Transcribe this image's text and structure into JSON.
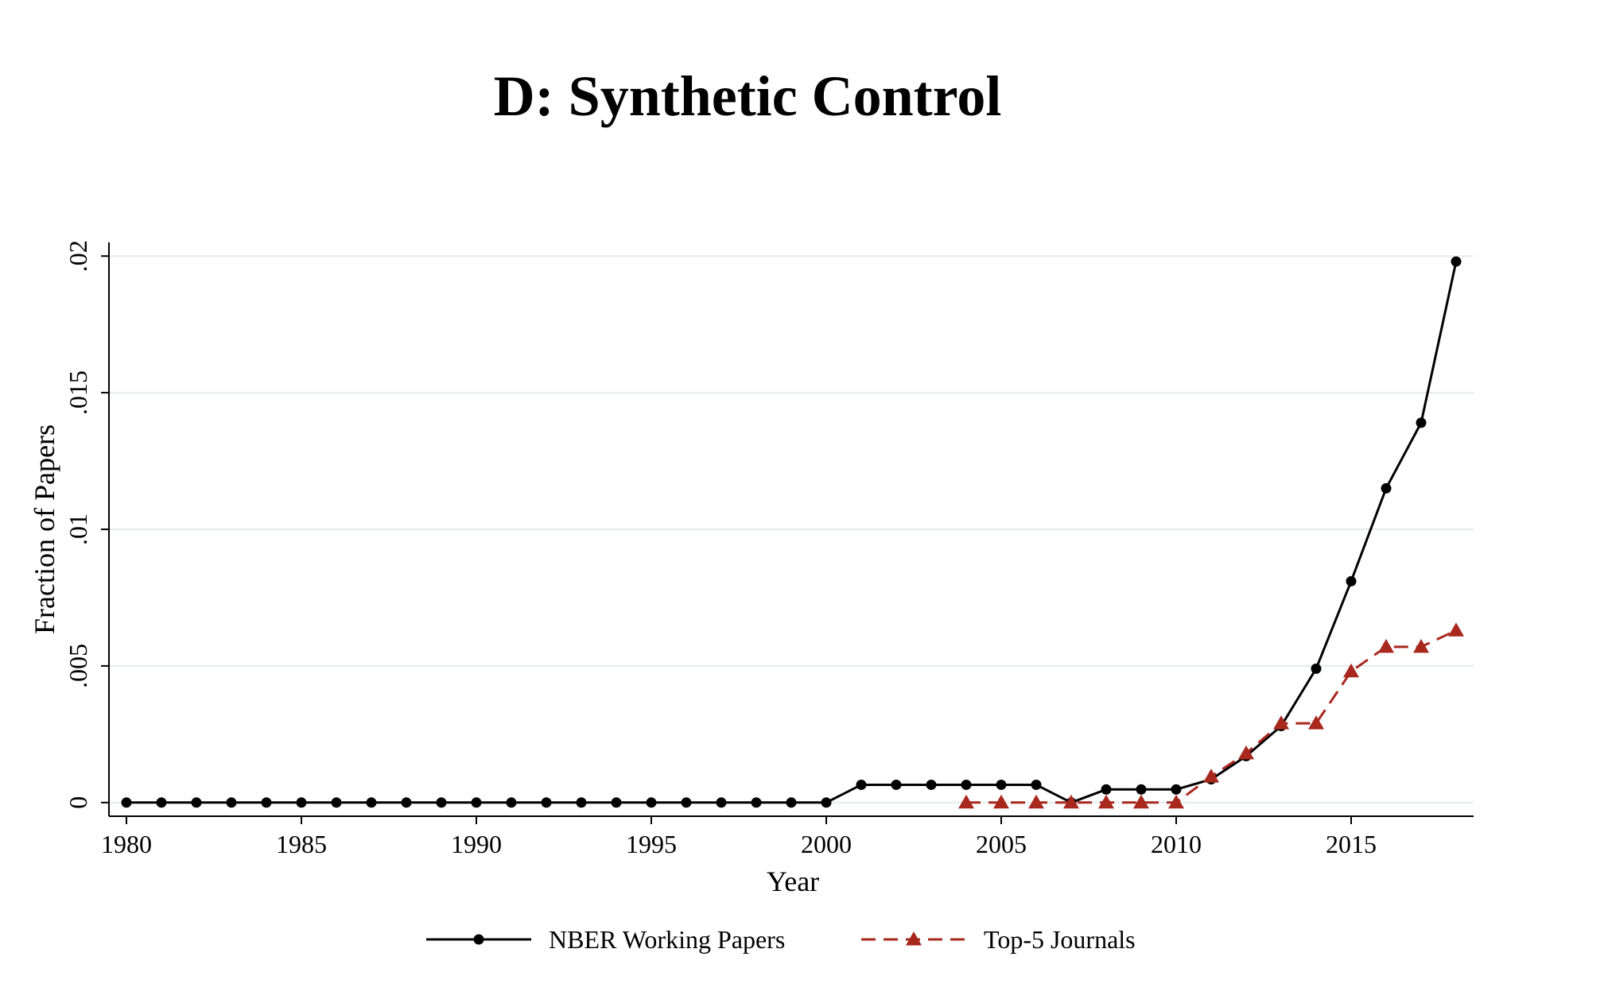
{
  "chart_data": {
    "type": "line",
    "title": "D: Synthetic Control",
    "xlabel": "Year",
    "ylabel": "Fraction of Papers",
    "xlim": [
      1979.5,
      2018.5
    ],
    "ylim": [
      -0.0005,
      0.0205
    ],
    "grid": true,
    "legend_position": "bottom",
    "x_ticks": [
      {
        "value": 1980,
        "label": "1980"
      },
      {
        "value": 1985,
        "label": "1985"
      },
      {
        "value": 1990,
        "label": "1990"
      },
      {
        "value": 1995,
        "label": "1995"
      },
      {
        "value": 2000,
        "label": "2000"
      },
      {
        "value": 2005,
        "label": "2005"
      },
      {
        "value": 2010,
        "label": "2010"
      },
      {
        "value": 2015,
        "label": "2015"
      }
    ],
    "y_ticks": [
      {
        "value": 0,
        "label": "0"
      },
      {
        "value": 0.005,
        "label": ".005"
      },
      {
        "value": 0.01,
        "label": ".01"
      },
      {
        "value": 0.015,
        "label": ".015"
      },
      {
        "value": 0.02,
        "label": ".02"
      }
    ],
    "series": [
      {
        "name": "NBER Working Papers",
        "color": "#000000",
        "line_style": "solid",
        "marker": "circle",
        "x": [
          1980,
          1981,
          1982,
          1983,
          1984,
          1985,
          1986,
          1987,
          1988,
          1989,
          1990,
          1991,
          1992,
          1993,
          1994,
          1995,
          1996,
          1997,
          1998,
          1999,
          2000,
          2001,
          2002,
          2003,
          2004,
          2005,
          2006,
          2007,
          2008,
          2009,
          2010,
          2011,
          2012,
          2013,
          2014,
          2015,
          2016,
          2017,
          2018
        ],
        "y": [
          0,
          0,
          0,
          0,
          0,
          0,
          0,
          0,
          0,
          0,
          0,
          0,
          0,
          0,
          0,
          0,
          0,
          0,
          0,
          0,
          0,
          0.00065,
          0.00065,
          0.00065,
          0.00065,
          0.00065,
          0.00065,
          0,
          0.00048,
          0.00048,
          0.00048,
          0.00085,
          0.0017,
          0.0028,
          0.0049,
          0.0081,
          0.0115,
          0.0139,
          0.0198
        ]
      },
      {
        "name": "Top-5 Journals",
        "color": "#a8281e",
        "line_style": "dashed",
        "marker": "triangle",
        "x": [
          2004,
          2005,
          2006,
          2007,
          2008,
          2009,
          2010,
          2011,
          2012,
          2013,
          2014,
          2015,
          2016,
          2017,
          2018
        ],
        "y": [
          0,
          0,
          0,
          0,
          0,
          0,
          0,
          0.00095,
          0.0018,
          0.0029,
          0.0029,
          0.0048,
          0.0057,
          0.0057,
          0.0063
        ]
      }
    ]
  }
}
